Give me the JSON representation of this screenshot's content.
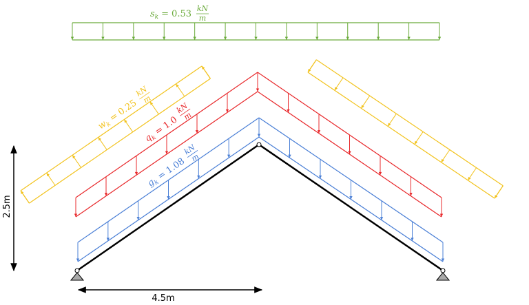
{
  "loads": [
    {
      "symbol": "s",
      "subscript": "k",
      "relation": "=",
      "value": "0.53",
      "numerator": "kN",
      "denominator": "m"
    },
    {
      "symbol": "w",
      "subscript": "k",
      "relation": "=",
      "value": "0.25",
      "numerator": "kN",
      "denominator": "m"
    },
    {
      "symbol": "q",
      "subscript": "k",
      "relation": "=",
      "value": "1.0",
      "numerator": "kN",
      "denominator": "m"
    },
    {
      "symbol": "g",
      "subscript": "k",
      "relation": "=",
      "value": "1.08",
      "numerator": "kN",
      "denominator": "m"
    }
  ],
  "dimensions": {
    "height": "2.5m",
    "span": "4.5m"
  }
}
